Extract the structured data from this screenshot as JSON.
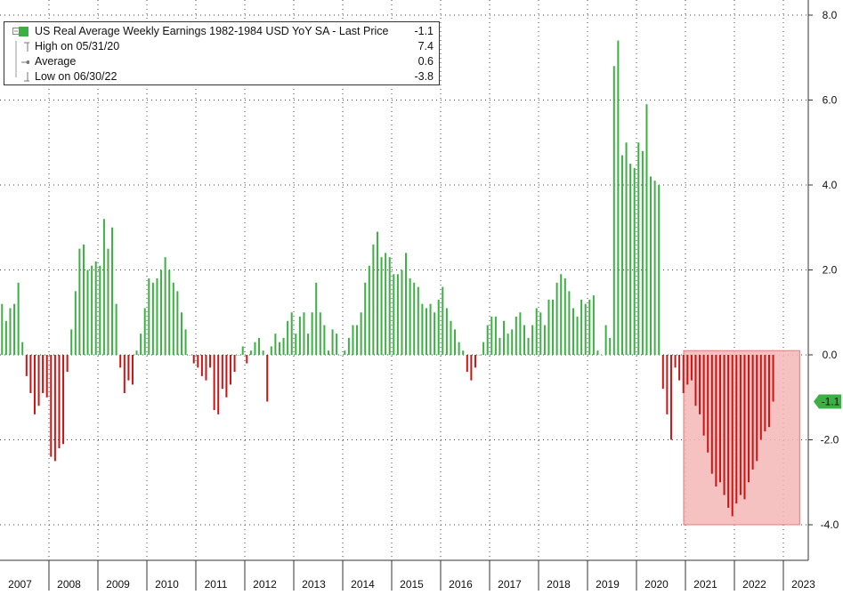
{
  "chart_data": {
    "type": "bar",
    "title": "US Real Average Weekly Earnings 1982-1984 USD YoY SA - Last Price",
    "last_price": "-1.1",
    "ylim": [
      -4.8,
      8.3
    ],
    "grid": true,
    "y_ticks": [
      "8.0",
      "6.0",
      "4.0",
      "2.0",
      "0.0",
      "-2.0",
      "-4.0"
    ],
    "x_labels": [
      "2007",
      "2008",
      "2009",
      "2010",
      "2011",
      "2012",
      "2013",
      "2014",
      "2015",
      "2016",
      "2017",
      "2018",
      "2019",
      "2020",
      "2021",
      "2022",
      "2023"
    ],
    "x_start": 2007.0,
    "months_per_year": 12,
    "values": [
      1.2,
      0.8,
      1.1,
      1.2,
      1.7,
      0.3,
      -0.5,
      -0.9,
      -1.4,
      -1.2,
      -0.9,
      -1.0,
      -2.4,
      -2.5,
      -2.2,
      -2.1,
      -0.4,
      0.6,
      1.5,
      2.5,
      2.6,
      2.0,
      2.1,
      2.2,
      2.1,
      3.2,
      2.5,
      3.0,
      1.2,
      -0.3,
      -0.9,
      -0.6,
      -0.7,
      0.1,
      0.5,
      1.1,
      1.8,
      1.7,
      1.8,
      2.0,
      2.3,
      2.0,
      1.7,
      1.5,
      1.0,
      0.6,
      0.0,
      -0.2,
      -0.3,
      -0.5,
      -0.6,
      -0.3,
      -1.3,
      -1.4,
      -0.8,
      -1.0,
      -0.7,
      -0.4,
      0.0,
      0.2,
      -0.2,
      0.1,
      0.3,
      0.4,
      0.1,
      -1.1,
      0.2,
      0.5,
      0.3,
      0.4,
      0.8,
      1.0,
      0.5,
      0.9,
      1.0,
      0.5,
      1.0,
      1.7,
      1.0,
      0.7,
      0.1,
      0.6,
      0.5,
      0.0,
      0.1,
      0.4,
      0.7,
      0.7,
      1.0,
      1.7,
      2.1,
      2.6,
      2.9,
      2.3,
      2.4,
      2.3,
      1.9,
      1.9,
      2.0,
      2.4,
      1.8,
      1.7,
      1.6,
      1.2,
      1.1,
      1.2,
      1.0,
      1.3,
      1.6,
      1.1,
      0.8,
      0.6,
      0.3,
      0.1,
      -0.4,
      -0.6,
      -0.3,
      0.0,
      0.3,
      0.7,
      0.9,
      0.9,
      0.4,
      0.8,
      0.5,
      0.6,
      0.9,
      1.0,
      0.7,
      0.4,
      0.7,
      1.1,
      1.0,
      0.7,
      1.3,
      1.3,
      1.7,
      1.9,
      1.8,
      1.5,
      1.1,
      0.9,
      1.3,
      1.2,
      1.3,
      1.4,
      0.1,
      0.0,
      0.7,
      0.4,
      6.8,
      7.4,
      4.7,
      5.0,
      4.5,
      4.4,
      5.0,
      4.8,
      5.9,
      4.2,
      4.1,
      4.0,
      -0.8,
      -1.4,
      -2.0,
      -0.3,
      -0.6,
      -0.9,
      -0.7,
      -0.6,
      -1.2,
      -1.4,
      -1.9,
      -2.3,
      -2.8,
      -3.1,
      -3.0,
      -3.3,
      -3.6,
      -3.8,
      -3.5,
      -3.3,
      -3.4,
      -3.0,
      -2.7,
      -2.5,
      -2.0,
      -1.8,
      -1.7,
      -1.1
    ],
    "highlight": {
      "from_index": 168,
      "to_index": 195,
      "y_range": [
        -4.0,
        0.1
      ]
    }
  },
  "legend": {
    "title_prefix": "US Real Average Weekly Earnings 1982-1984 USD YoY SA - Last Price",
    "title_value": "-1.1",
    "high_label": "High on 05/31/20",
    "high_value": "7.4",
    "average_label": "Average",
    "average_value": "0.6",
    "low_label": "Low on 06/30/22",
    "low_value": "-3.8"
  },
  "colors": {
    "positive": "#3cb043",
    "negative": "#cc1414",
    "highlight": "#f4b6b6",
    "highlight_stroke": "#e07c7c",
    "axis": "#333333",
    "grid": "#444444"
  }
}
